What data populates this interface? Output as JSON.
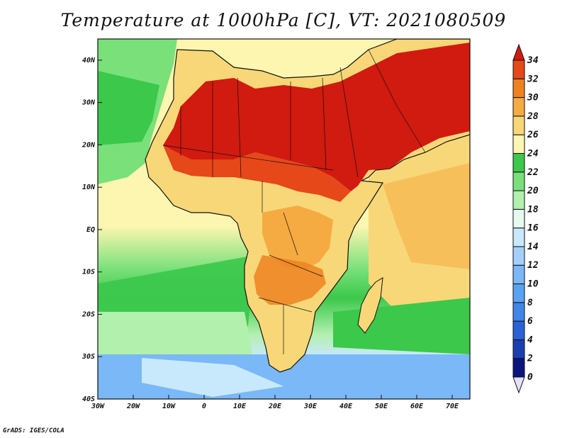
{
  "title": "Temperature at 1000hPa [C], VT: 2021080509",
  "footer": "GrADS: IGES/COLA",
  "map": {
    "lon_range": [
      -30,
      75
    ],
    "lat_range": [
      -40,
      45
    ],
    "lon_ticks": [
      {
        "value": -30,
        "label": "30W"
      },
      {
        "value": -20,
        "label": "20W"
      },
      {
        "value": -10,
        "label": "10W"
      },
      {
        "value": 0,
        "label": "0"
      },
      {
        "value": 10,
        "label": "10E"
      },
      {
        "value": 20,
        "label": "20E"
      },
      {
        "value": 30,
        "label": "30E"
      },
      {
        "value": 40,
        "label": "40E"
      },
      {
        "value": 50,
        "label": "50E"
      },
      {
        "value": 60,
        "label": "60E"
      },
      {
        "value": 70,
        "label": "70E"
      }
    ],
    "lat_ticks": [
      {
        "value": 40,
        "label": "40N"
      },
      {
        "value": 30,
        "label": "30N"
      },
      {
        "value": 20,
        "label": "20N"
      },
      {
        "value": 10,
        "label": "10N"
      },
      {
        "value": 0,
        "label": "EQ"
      },
      {
        "value": -10,
        "label": "10S"
      },
      {
        "value": -20,
        "label": "20S"
      },
      {
        "value": -30,
        "label": "30S"
      },
      {
        "value": -40,
        "label": "40S"
      }
    ]
  },
  "colorbar": {
    "levels": [
      0,
      2,
      4,
      6,
      8,
      10,
      12,
      14,
      16,
      18,
      20,
      22,
      24,
      26,
      28,
      30,
      32,
      34
    ],
    "colors": [
      "#e3e1ff",
      "#0c147e",
      "#1a3fb0",
      "#2a63d6",
      "#3f86e8",
      "#5aa2f2",
      "#7ab8f7",
      "#a3d0fb",
      "#c8e8fc",
      "#e6fbf0",
      "#b2f0ad",
      "#79e07a",
      "#3bc84b",
      "#fcf6b0",
      "#f8d778",
      "#f5ab42",
      "#ef8220",
      "#e6481a",
      "#d11a10"
    ]
  }
}
